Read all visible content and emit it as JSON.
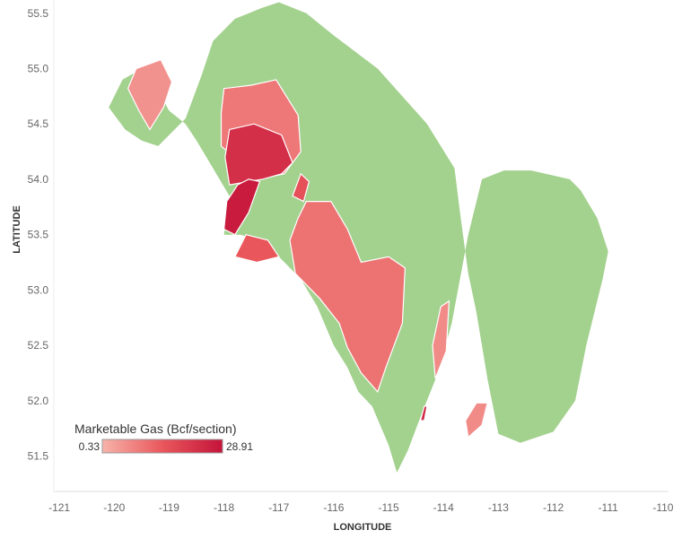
{
  "chart_data": {
    "type": "map",
    "xlabel": "LONGITUDE",
    "ylabel": "LATITUDE",
    "x_ticks": [
      -121,
      -120,
      -119,
      -118,
      -117,
      -116,
      -115,
      -114,
      -113,
      -112,
      -111,
      -110
    ],
    "y_ticks": [
      55.5,
      55.0,
      54.5,
      54.0,
      53.5,
      53.0,
      52.5,
      52.0,
      51.5
    ],
    "xlim": [
      -121.1,
      -109.9
    ],
    "ylim": [
      51.18,
      55.62
    ],
    "grid": false,
    "base_region_color": "#a3d18e",
    "legend": {
      "title": "Marketable Gas (Bcf/section)",
      "min": "0.33",
      "max": "28.91",
      "min_value": 0.33,
      "max_value": 28.91,
      "gradient": [
        "#f7b3aa",
        "#e9575c",
        "#c4143a"
      ],
      "placement": "bottom-left"
    },
    "base_region": [
      [
        -117.0,
        55.6
      ],
      [
        -116.5,
        55.5
      ],
      [
        -116.0,
        55.3
      ],
      [
        -115.2,
        55.0
      ],
      [
        -114.3,
        54.5
      ],
      [
        -113.8,
        54.1
      ],
      [
        -113.7,
        53.7
      ],
      [
        -113.55,
        53.15
      ],
      [
        -113.4,
        52.8
      ],
      [
        -113.2,
        52.2
      ],
      [
        -113.0,
        51.7
      ],
      [
        -112.6,
        51.62
      ],
      [
        -112.0,
        51.72
      ],
      [
        -111.6,
        52.0
      ],
      [
        -111.4,
        52.5
      ],
      [
        -111.1,
        53.1
      ],
      [
        -111.0,
        53.35
      ],
      [
        -111.2,
        53.65
      ],
      [
        -111.5,
        53.9
      ],
      [
        -111.7,
        54.0
      ],
      [
        -112.4,
        54.08
      ],
      [
        -112.9,
        54.08
      ],
      [
        -113.3,
        54.0
      ],
      [
        -113.55,
        53.5
      ],
      [
        -113.85,
        52.7
      ],
      [
        -114.1,
        52.25
      ],
      [
        -114.4,
        51.88
      ],
      [
        -114.65,
        51.55
      ],
      [
        -114.85,
        51.35
      ],
      [
        -115.0,
        51.6
      ],
      [
        -115.3,
        51.95
      ],
      [
        -115.55,
        52.08
      ],
      [
        -115.75,
        52.3
      ],
      [
        -116.0,
        52.5
      ],
      [
        -116.3,
        52.85
      ],
      [
        -116.6,
        53.1
      ],
      [
        -117.0,
        53.3
      ],
      [
        -117.35,
        53.45
      ],
      [
        -117.7,
        53.5
      ],
      [
        -118.0,
        53.5
      ],
      [
        -117.9,
        53.85
      ],
      [
        -118.2,
        54.1
      ],
      [
        -118.5,
        54.35
      ],
      [
        -118.7,
        54.5
      ],
      [
        -119.0,
        54.62
      ],
      [
        -119.2,
        54.8
      ],
      [
        -119.5,
        55.0
      ],
      [
        -119.85,
        54.9
      ],
      [
        -120.1,
        54.65
      ],
      [
        -119.8,
        54.45
      ],
      [
        -119.5,
        54.35
      ],
      [
        -119.2,
        54.3
      ],
      [
        -118.7,
        54.55
      ],
      [
        -118.4,
        54.95
      ],
      [
        -118.2,
        55.25
      ],
      [
        -117.8,
        55.45
      ],
      [
        -117.3,
        55.55
      ]
    ],
    "gas_regions": [
      {
        "name": "northwest-lobe",
        "level": 0.18,
        "points": [
          [
            -119.6,
            55.0
          ],
          [
            -119.15,
            55.08
          ],
          [
            -118.95,
            54.88
          ],
          [
            -119.1,
            54.65
          ],
          [
            -119.35,
            54.45
          ],
          [
            -119.55,
            54.62
          ],
          [
            -119.75,
            54.82
          ]
        ]
      },
      {
        "name": "north-central-upper",
        "level": 0.32,
        "points": [
          [
            -118.0,
            54.82
          ],
          [
            -117.5,
            54.85
          ],
          [
            -117.05,
            54.9
          ],
          [
            -116.65,
            54.58
          ],
          [
            -116.6,
            54.25
          ],
          [
            -116.9,
            54.05
          ],
          [
            -117.2,
            54.02
          ],
          [
            -117.7,
            54.15
          ],
          [
            -118.05,
            54.3
          ],
          [
            -118.05,
            54.6
          ]
        ]
      },
      {
        "name": "north-central-core",
        "level": 0.8,
        "points": [
          [
            -117.9,
            54.45
          ],
          [
            -117.45,
            54.5
          ],
          [
            -116.95,
            54.4
          ],
          [
            -116.75,
            54.15
          ],
          [
            -116.95,
            54.05
          ],
          [
            -117.3,
            54.0
          ],
          [
            -117.9,
            53.95
          ],
          [
            -117.98,
            54.2
          ]
        ]
      },
      {
        "name": "west-hotspot",
        "level": 0.95,
        "points": [
          [
            -117.55,
            54.0
          ],
          [
            -117.35,
            53.98
          ],
          [
            -117.55,
            53.7
          ],
          [
            -117.8,
            53.5
          ],
          [
            -118.0,
            53.55
          ],
          [
            -117.95,
            53.8
          ],
          [
            -117.75,
            53.95
          ]
        ]
      },
      {
        "name": "west-small-lower",
        "level": 0.5,
        "points": [
          [
            -117.6,
            53.5
          ],
          [
            -117.2,
            53.45
          ],
          [
            -117.0,
            53.3
          ],
          [
            -117.4,
            53.25
          ],
          [
            -117.8,
            53.3
          ]
        ]
      },
      {
        "name": "central-strip",
        "level": 0.55,
        "points": [
          [
            -116.6,
            54.05
          ],
          [
            -116.45,
            53.98
          ],
          [
            -116.55,
            53.8
          ],
          [
            -116.75,
            53.85
          ]
        ]
      },
      {
        "name": "central-large",
        "level": 0.35,
        "points": [
          [
            -116.5,
            53.8
          ],
          [
            -116.05,
            53.8
          ],
          [
            -115.75,
            53.55
          ],
          [
            -115.5,
            53.25
          ],
          [
            -115.0,
            53.3
          ],
          [
            -114.7,
            53.2
          ],
          [
            -114.75,
            52.7
          ],
          [
            -115.05,
            52.3
          ],
          [
            -115.2,
            52.08
          ],
          [
            -115.5,
            52.25
          ],
          [
            -115.75,
            52.48
          ],
          [
            -115.9,
            52.7
          ],
          [
            -116.25,
            52.92
          ],
          [
            -116.7,
            53.15
          ],
          [
            -116.8,
            53.45
          ],
          [
            -116.65,
            53.65
          ]
        ]
      },
      {
        "name": "east-small-upper",
        "level": 0.22,
        "points": [
          [
            -114.05,
            52.85
          ],
          [
            -113.9,
            52.9
          ],
          [
            -113.95,
            52.45
          ],
          [
            -114.15,
            52.2
          ],
          [
            -114.2,
            52.5
          ]
        ]
      },
      {
        "name": "east-small-lower",
        "level": 0.22,
        "points": [
          [
            -113.4,
            51.98
          ],
          [
            -113.2,
            51.98
          ],
          [
            -113.3,
            51.78
          ],
          [
            -113.55,
            51.67
          ],
          [
            -113.6,
            51.82
          ]
        ]
      },
      {
        "name": "south-dot",
        "level": 0.85,
        "points": [
          [
            -114.35,
            51.95
          ],
          [
            -114.3,
            51.95
          ],
          [
            -114.35,
            51.82
          ],
          [
            -114.42,
            51.82
          ]
        ]
      }
    ]
  }
}
